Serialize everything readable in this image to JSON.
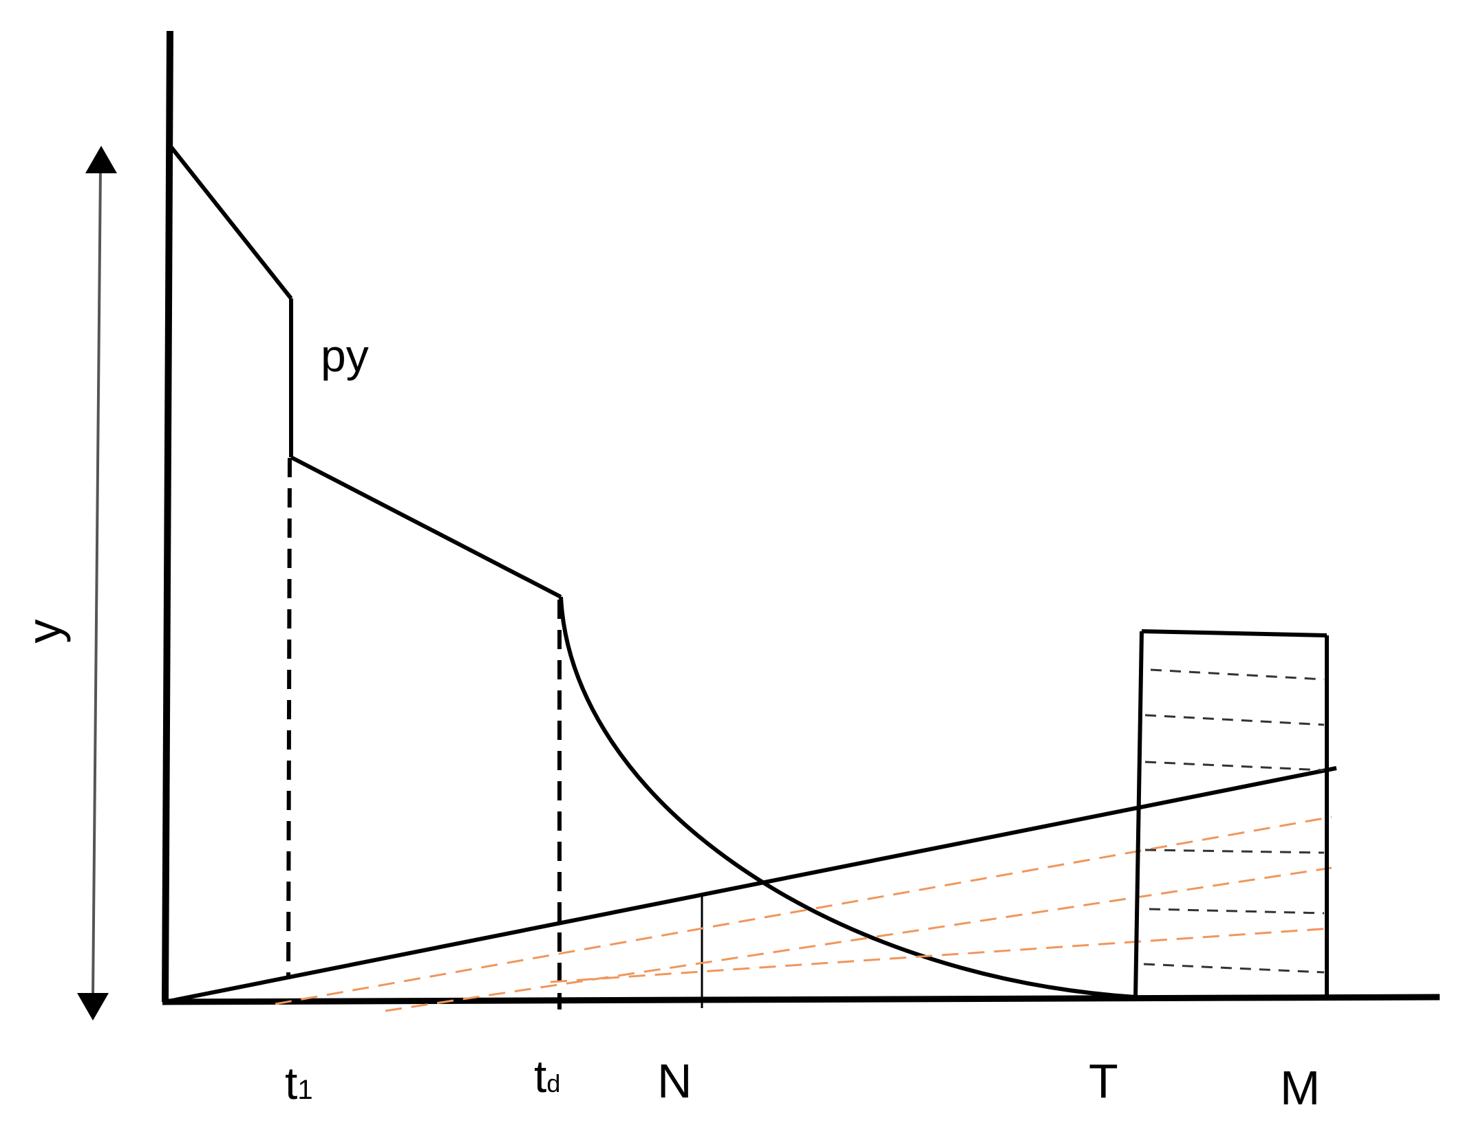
{
  "diagram": {
    "labels": {
      "y_axis": "y",
      "py": "py",
      "t1_main": "t",
      "t1_sub": "1",
      "td_main": "t",
      "td_sub": "d",
      "n": "N",
      "t": "T",
      "m": "M"
    },
    "colors": {
      "line": "#000000",
      "dashed_black": "#333333",
      "dashed_orange": "#f0965a",
      "background": "#ffffff"
    }
  }
}
